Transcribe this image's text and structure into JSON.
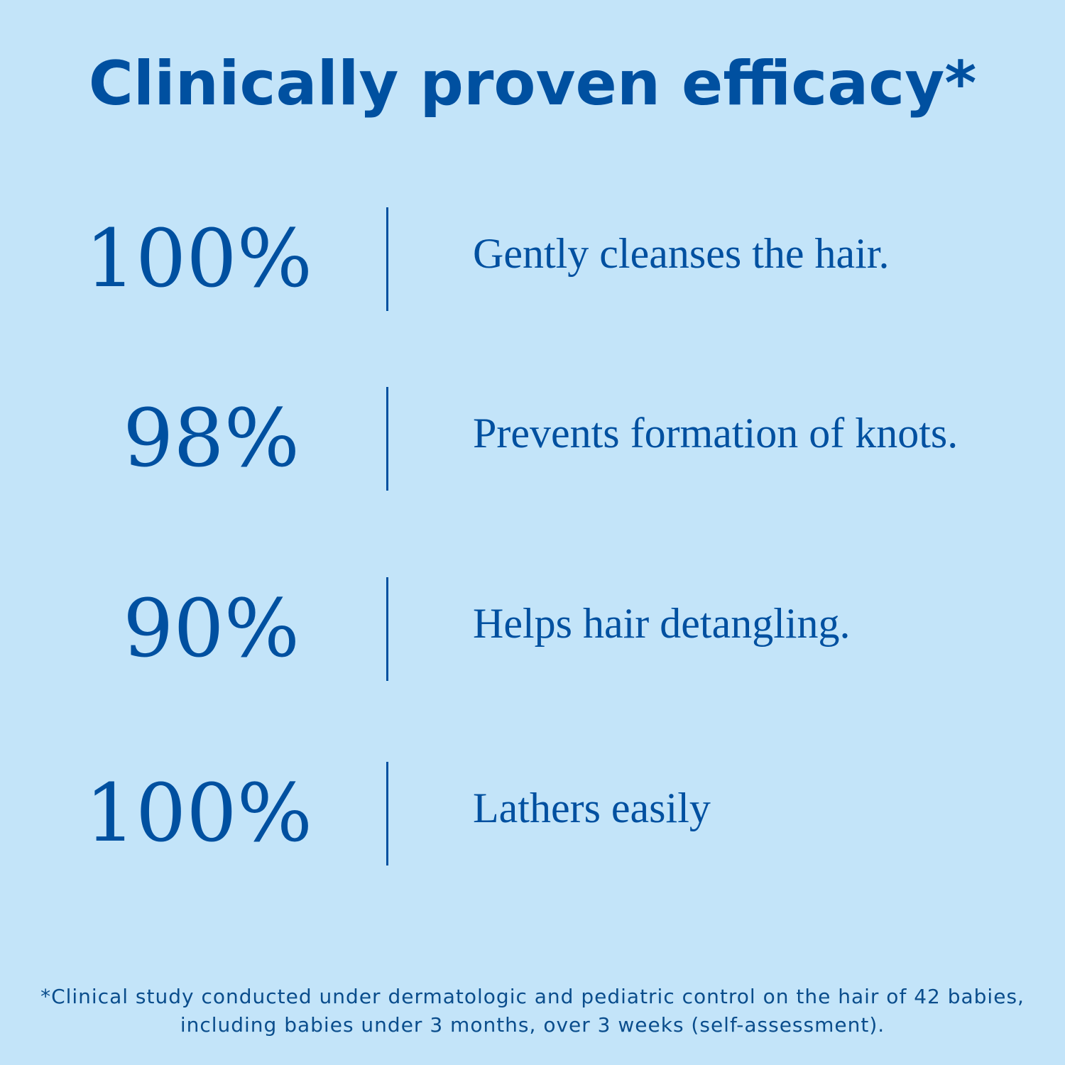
{
  "title": "Clinically proven efficacy*",
  "stats": [
    {
      "percent": "100%",
      "text": "Gently cleanses the hair."
    },
    {
      "percent": "98%",
      "text": "Prevents formation of knots."
    },
    {
      "percent": "90%",
      "text": "Helps hair detangling."
    },
    {
      "percent": "100%",
      "text": "Lathers easily"
    }
  ],
  "footnote": "*Clinical study conducted under dermatologic and pediatric control on the hair of 42 babies, including babies under 3 months, over 3 weeks (self-assessment).",
  "colors": {
    "background": "#c3e4f9",
    "text": "#0050a0"
  }
}
